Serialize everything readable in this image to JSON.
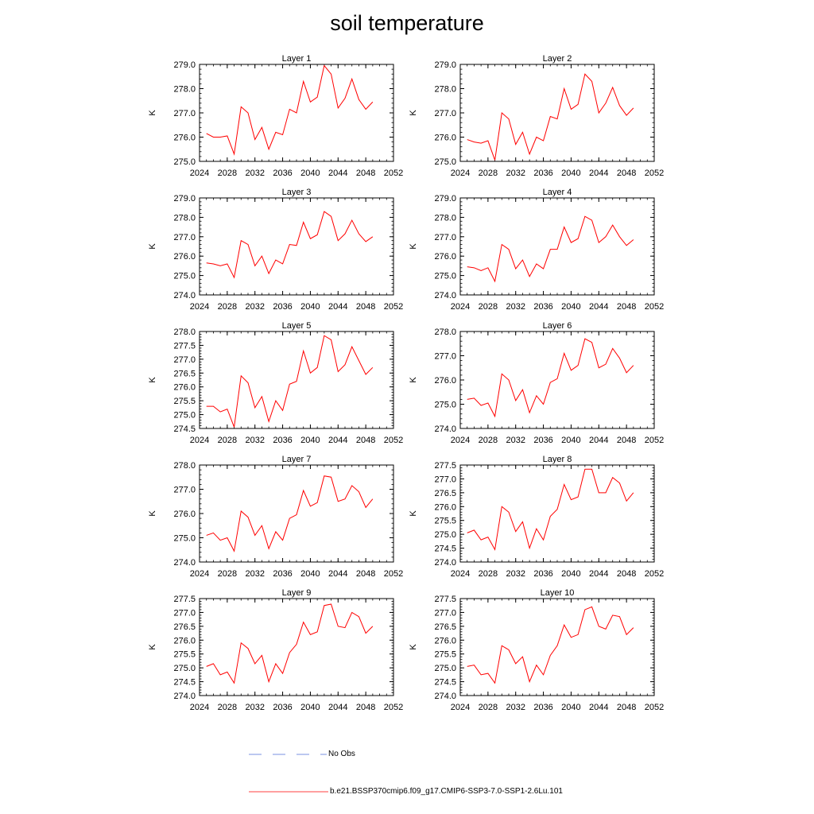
{
  "title": "soil temperature",
  "colors": {
    "model": "#ff0000",
    "obs": "#4f6fd8",
    "axis": "#000000"
  },
  "legend": {
    "obs_label": "No Obs",
    "model_label": "b.e21.BSSP370cmip6.f09_g17.CMIP6-SSP3-7.0-SSP1-2.6Lu.101"
  },
  "chart_data": [
    {
      "type": "line",
      "title": "Layer 1",
      "ylabel": "K",
      "xlim": [
        2024,
        2052
      ],
      "xticks": [
        2024,
        2028,
        2032,
        2036,
        2040,
        2044,
        2048,
        2052
      ],
      "ylim": [
        275.0,
        279.0
      ],
      "yticks": [
        275.0,
        276.0,
        277.0,
        278.0,
        279.0
      ],
      "x": [
        2025,
        2026,
        2027,
        2028,
        2029,
        2030,
        2031,
        2032,
        2033,
        2034,
        2035,
        2036,
        2037,
        2038,
        2039,
        2040,
        2041,
        2042,
        2043,
        2044,
        2045,
        2046,
        2047,
        2048,
        2049
      ],
      "series": [
        {
          "name": "b.e21.BSSP370cmip6.f09_g17.CMIP6-SSP3-7.0-SSP1-2.6Lu.101",
          "values": [
            276.15,
            276.0,
            276.0,
            276.05,
            275.3,
            277.25,
            277.0,
            275.9,
            276.4,
            275.5,
            276.2,
            276.1,
            277.15,
            277.0,
            278.3,
            277.45,
            277.65,
            278.95,
            278.6,
            277.2,
            277.6,
            278.4,
            277.55,
            277.15,
            277.45
          ]
        }
      ]
    },
    {
      "type": "line",
      "title": "Layer 2",
      "ylabel": "K",
      "xlim": [
        2024,
        2052
      ],
      "xticks": [
        2024,
        2028,
        2032,
        2036,
        2040,
        2044,
        2048,
        2052
      ],
      "ylim": [
        275.0,
        279.0
      ],
      "yticks": [
        275.0,
        276.0,
        277.0,
        278.0,
        279.0
      ],
      "x": [
        2025,
        2026,
        2027,
        2028,
        2029,
        2030,
        2031,
        2032,
        2033,
        2034,
        2035,
        2036,
        2037,
        2038,
        2039,
        2040,
        2041,
        2042,
        2043,
        2044,
        2045,
        2046,
        2047,
        2048,
        2049
      ],
      "series": [
        {
          "name": "b.e21.BSSP370cmip6.f09_g17.CMIP6-SSP3-7.0-SSP1-2.6Lu.101",
          "values": [
            275.9,
            275.8,
            275.75,
            275.85,
            275.05,
            277.0,
            276.75,
            275.7,
            276.2,
            275.3,
            276.0,
            275.85,
            276.85,
            276.75,
            278.0,
            277.15,
            277.35,
            278.6,
            278.3,
            277.0,
            277.4,
            278.05,
            277.3,
            276.9,
            277.2
          ]
        }
      ]
    },
    {
      "type": "line",
      "title": "Layer 3",
      "ylabel": "K",
      "xlim": [
        2024,
        2052
      ],
      "xticks": [
        2024,
        2028,
        2032,
        2036,
        2040,
        2044,
        2048,
        2052
      ],
      "ylim": [
        274.0,
        279.0
      ],
      "yticks": [
        274.0,
        275.0,
        276.0,
        277.0,
        278.0,
        279.0
      ],
      "x": [
        2025,
        2026,
        2027,
        2028,
        2029,
        2030,
        2031,
        2032,
        2033,
        2034,
        2035,
        2036,
        2037,
        2038,
        2039,
        2040,
        2041,
        2042,
        2043,
        2044,
        2045,
        2046,
        2047,
        2048,
        2049
      ],
      "series": [
        {
          "name": "b.e21.BSSP370cmip6.f09_g17.CMIP6-SSP3-7.0-SSP1-2.6Lu.101",
          "values": [
            275.65,
            275.6,
            275.5,
            275.6,
            274.9,
            276.8,
            276.6,
            275.5,
            276.0,
            275.1,
            275.8,
            275.6,
            276.6,
            276.55,
            277.75,
            276.9,
            277.1,
            278.3,
            278.05,
            276.8,
            277.15,
            277.85,
            277.15,
            276.75,
            277.0
          ]
        }
      ]
    },
    {
      "type": "line",
      "title": "Layer 4",
      "ylabel": "K",
      "xlim": [
        2024,
        2052
      ],
      "xticks": [
        2024,
        2028,
        2032,
        2036,
        2040,
        2044,
        2048,
        2052
      ],
      "ylim": [
        274.0,
        279.0
      ],
      "yticks": [
        274.0,
        275.0,
        276.0,
        277.0,
        278.0,
        279.0
      ],
      "x": [
        2025,
        2026,
        2027,
        2028,
        2029,
        2030,
        2031,
        2032,
        2033,
        2034,
        2035,
        2036,
        2037,
        2038,
        2039,
        2040,
        2041,
        2042,
        2043,
        2044,
        2045,
        2046,
        2047,
        2048,
        2049
      ],
      "series": [
        {
          "name": "b.e21.BSSP370cmip6.f09_g17.CMIP6-SSP3-7.0-SSP1-2.6Lu.101",
          "values": [
            275.45,
            275.4,
            275.25,
            275.4,
            274.7,
            276.6,
            276.35,
            275.35,
            275.8,
            274.95,
            275.6,
            275.35,
            276.35,
            276.35,
            277.5,
            276.7,
            276.9,
            278.05,
            277.85,
            276.7,
            277.0,
            277.6,
            277.0,
            276.55,
            276.85
          ]
        }
      ]
    },
    {
      "type": "line",
      "title": "Layer 5",
      "ylabel": "K",
      "xlim": [
        2024,
        2052
      ],
      "xticks": [
        2024,
        2028,
        2032,
        2036,
        2040,
        2044,
        2048,
        2052
      ],
      "ylim": [
        274.5,
        278.0
      ],
      "yticks": [
        274.5,
        275.0,
        275.5,
        276.0,
        276.5,
        277.0,
        277.5,
        278.0
      ],
      "x": [
        2025,
        2026,
        2027,
        2028,
        2029,
        2030,
        2031,
        2032,
        2033,
        2034,
        2035,
        2036,
        2037,
        2038,
        2039,
        2040,
        2041,
        2042,
        2043,
        2044,
        2045,
        2046,
        2047,
        2048,
        2049
      ],
      "series": [
        {
          "name": "b.e21.BSSP370cmip6.f09_g17.CMIP6-SSP3-7.0-SSP1-2.6Lu.101",
          "values": [
            275.3,
            275.3,
            275.1,
            275.2,
            274.55,
            276.4,
            276.15,
            275.25,
            275.65,
            274.75,
            275.5,
            275.15,
            276.1,
            276.2,
            277.3,
            276.5,
            276.7,
            277.85,
            277.7,
            276.55,
            276.8,
            277.45,
            276.95,
            276.45,
            276.7
          ]
        }
      ]
    },
    {
      "type": "line",
      "title": "Layer 6",
      "ylabel": "K",
      "xlim": [
        2024,
        2052
      ],
      "xticks": [
        2024,
        2028,
        2032,
        2036,
        2040,
        2044,
        2048,
        2052
      ],
      "ylim": [
        274.0,
        278.0
      ],
      "yticks": [
        274.0,
        275.0,
        276.0,
        277.0,
        278.0
      ],
      "x": [
        2025,
        2026,
        2027,
        2028,
        2029,
        2030,
        2031,
        2032,
        2033,
        2034,
        2035,
        2036,
        2037,
        2038,
        2039,
        2040,
        2041,
        2042,
        2043,
        2044,
        2045,
        2046,
        2047,
        2048,
        2049
      ],
      "series": [
        {
          "name": "b.e21.BSSP370cmip6.f09_g17.CMIP6-SSP3-7.0-SSP1-2.6Lu.101",
          "values": [
            275.2,
            275.25,
            274.95,
            275.05,
            274.5,
            276.25,
            276.0,
            275.15,
            275.6,
            274.65,
            275.35,
            275.0,
            275.9,
            276.05,
            277.1,
            276.4,
            276.6,
            277.7,
            277.55,
            276.5,
            276.65,
            277.3,
            276.9,
            276.3,
            276.6
          ]
        }
      ]
    },
    {
      "type": "line",
      "title": "Layer 7",
      "ylabel": "K",
      "xlim": [
        2024,
        2052
      ],
      "xticks": [
        2024,
        2028,
        2032,
        2036,
        2040,
        2044,
        2048,
        2052
      ],
      "ylim": [
        274.0,
        278.0
      ],
      "yticks": [
        274.0,
        275.0,
        276.0,
        277.0,
        278.0
      ],
      "x": [
        2025,
        2026,
        2027,
        2028,
        2029,
        2030,
        2031,
        2032,
        2033,
        2034,
        2035,
        2036,
        2037,
        2038,
        2039,
        2040,
        2041,
        2042,
        2043,
        2044,
        2045,
        2046,
        2047,
        2048,
        2049
      ],
      "series": [
        {
          "name": "b.e21.BSSP370cmip6.f09_g17.CMIP6-SSP3-7.0-SSP1-2.6Lu.101",
          "values": [
            275.1,
            275.2,
            274.9,
            275.0,
            274.45,
            276.1,
            275.85,
            275.1,
            275.5,
            274.55,
            275.25,
            274.9,
            275.8,
            275.95,
            276.95,
            276.3,
            276.45,
            277.55,
            277.5,
            276.5,
            276.6,
            277.15,
            276.9,
            276.25,
            276.6
          ]
        }
      ]
    },
    {
      "type": "line",
      "title": "Layer 8",
      "ylabel": "K",
      "xlim": [
        2024,
        2052
      ],
      "xticks": [
        2024,
        2028,
        2032,
        2036,
        2040,
        2044,
        2048,
        2052
      ],
      "ylim": [
        274.0,
        277.5
      ],
      "yticks": [
        274.0,
        274.5,
        275.0,
        275.5,
        276.0,
        276.5,
        277.0,
        277.5
      ],
      "x": [
        2025,
        2026,
        2027,
        2028,
        2029,
        2030,
        2031,
        2032,
        2033,
        2034,
        2035,
        2036,
        2037,
        2038,
        2039,
        2040,
        2041,
        2042,
        2043,
        2044,
        2045,
        2046,
        2047,
        2048,
        2049
      ],
      "series": [
        {
          "name": "b.e21.BSSP370cmip6.f09_g17.CMIP6-SSP3-7.0-SSP1-2.6Lu.101",
          "values": [
            275.05,
            275.15,
            274.8,
            274.9,
            274.45,
            276.0,
            275.8,
            275.1,
            275.45,
            274.5,
            275.2,
            274.8,
            275.65,
            275.9,
            276.8,
            276.25,
            276.35,
            277.35,
            277.35,
            276.5,
            276.5,
            277.05,
            276.85,
            276.2,
            276.5
          ]
        }
      ]
    },
    {
      "type": "line",
      "title": "Layer 9",
      "ylabel": "K",
      "xlim": [
        2024,
        2052
      ],
      "xticks": [
        2024,
        2028,
        2032,
        2036,
        2040,
        2044,
        2048,
        2052
      ],
      "ylim": [
        274.0,
        277.5
      ],
      "yticks": [
        274.0,
        274.5,
        275.0,
        275.5,
        276.0,
        276.5,
        277.0,
        277.5
      ],
      "x": [
        2025,
        2026,
        2027,
        2028,
        2029,
        2030,
        2031,
        2032,
        2033,
        2034,
        2035,
        2036,
        2037,
        2038,
        2039,
        2040,
        2041,
        2042,
        2043,
        2044,
        2045,
        2046,
        2047,
        2048,
        2049
      ],
      "series": [
        {
          "name": "b.e21.BSSP370cmip6.f09_g17.CMIP6-SSP3-7.0-SSP1-2.6Lu.101",
          "values": [
            275.05,
            275.15,
            274.75,
            274.85,
            274.45,
            275.9,
            275.7,
            275.15,
            275.45,
            274.5,
            275.15,
            274.8,
            275.55,
            275.85,
            276.65,
            276.2,
            276.3,
            277.25,
            277.3,
            276.5,
            276.45,
            277.0,
            276.85,
            276.25,
            276.5
          ]
        }
      ]
    },
    {
      "type": "line",
      "title": "Layer 10",
      "ylabel": "K",
      "xlim": [
        2024,
        2052
      ],
      "xticks": [
        2024,
        2028,
        2032,
        2036,
        2040,
        2044,
        2048,
        2052
      ],
      "ylim": [
        274.0,
        277.5
      ],
      "yticks": [
        274.0,
        274.5,
        275.0,
        275.5,
        276.0,
        276.5,
        277.0,
        277.5
      ],
      "x": [
        2025,
        2026,
        2027,
        2028,
        2029,
        2030,
        2031,
        2032,
        2033,
        2034,
        2035,
        2036,
        2037,
        2038,
        2039,
        2040,
        2041,
        2042,
        2043,
        2044,
        2045,
        2046,
        2047,
        2048,
        2049
      ],
      "series": [
        {
          "name": "b.e21.BSSP370cmip6.f09_g17.CMIP6-SSP3-7.0-SSP1-2.6Lu.101",
          "values": [
            275.05,
            275.1,
            274.75,
            274.8,
            274.45,
            275.8,
            275.65,
            275.15,
            275.4,
            274.5,
            275.1,
            274.75,
            275.45,
            275.8,
            276.55,
            276.1,
            276.2,
            277.1,
            277.2,
            276.5,
            276.4,
            276.9,
            276.85,
            276.2,
            276.45
          ]
        }
      ]
    }
  ]
}
